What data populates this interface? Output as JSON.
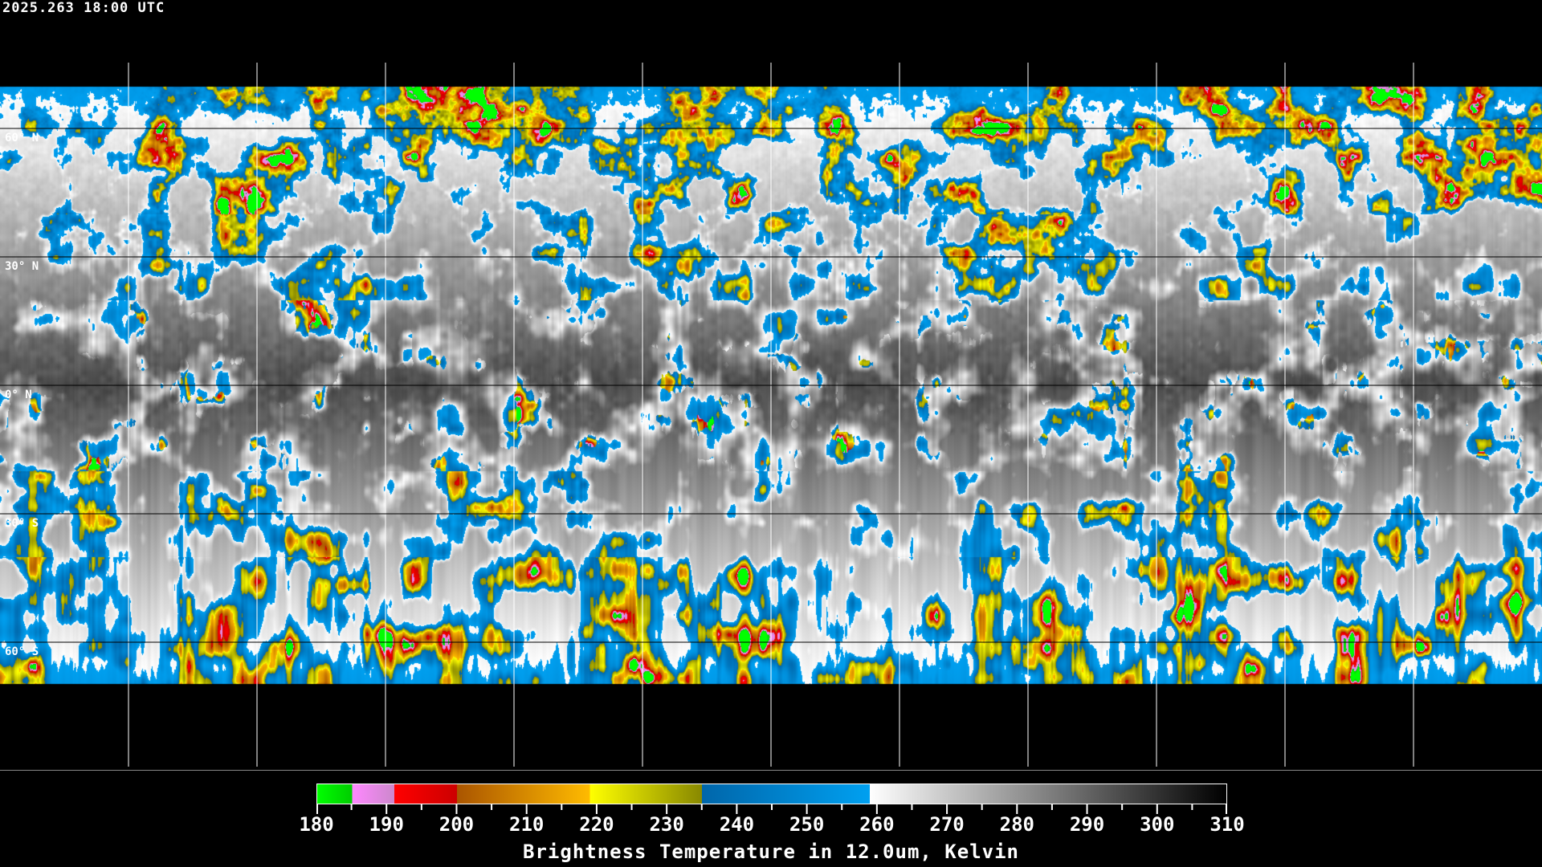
{
  "header": {
    "timestamp": "2025.263 18:00 UTC"
  },
  "map": {
    "projection": "equirectangular",
    "lat_labels": [
      "60° N",
      "30° N",
      "0° N",
      "30° S",
      "60° S"
    ],
    "grid_spacing_deg": 30,
    "coastline_color": "#ffffff",
    "grid_color": "#ffffff"
  },
  "colorbar": {
    "title": "Brightness Temperature in 12.0um, Kelvin",
    "min": 180,
    "max": 310,
    "tick_labels": [
      "180",
      "190",
      "200",
      "210",
      "220",
      "230",
      "240",
      "250",
      "260",
      "270",
      "280",
      "290",
      "300",
      "310"
    ],
    "segments": [
      {
        "from": 180,
        "to": 185,
        "start": "#00ff00",
        "end": "#00cc00"
      },
      {
        "from": 185,
        "to": 191,
        "start": "#ff88ff",
        "end": "#cc88cc"
      },
      {
        "from": 191,
        "to": 200,
        "start": "#ff0000",
        "end": "#cc0000"
      },
      {
        "from": 200,
        "to": 219,
        "start": "#aa5500",
        "end": "#ffbb00"
      },
      {
        "from": 219,
        "to": 235,
        "start": "#ffff00",
        "end": "#888800"
      },
      {
        "from": 235,
        "to": 259,
        "start": "#0066aa",
        "end": "#00a0f0"
      },
      {
        "from": 259,
        "to": 310,
        "start": "#ffffff",
        "end": "#000000"
      }
    ]
  }
}
